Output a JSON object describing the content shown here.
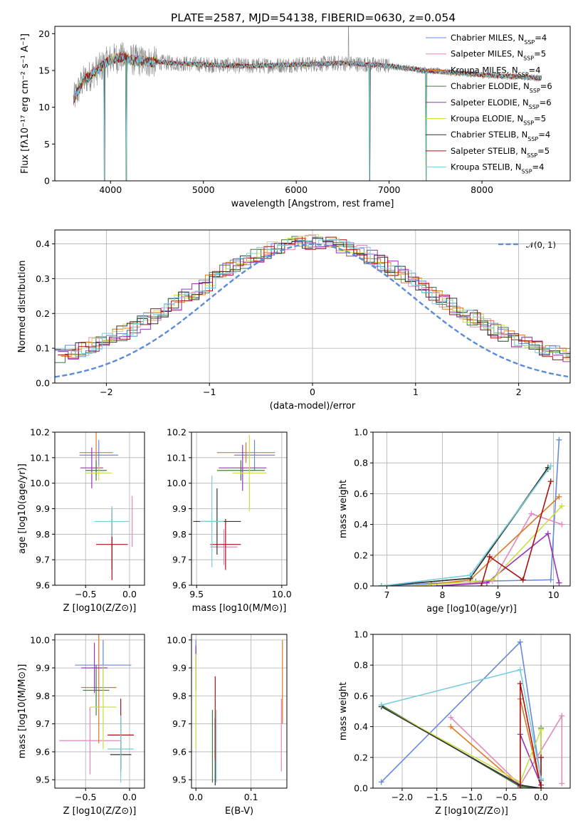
{
  "title": "PLATE=2587, MJD=54138, FIBERID=0630, z=0.054",
  "colors": {
    "series": [
      "#6688dd",
      "#e388bb",
      "#dd7722",
      "#447744",
      "#9933bb",
      "#ccdd44",
      "#333333",
      "#aa1111",
      "#77ccdd"
    ],
    "data_gray": "#888888",
    "normal_curve": "#5b8bdb",
    "grid": "#b0b0b0"
  },
  "legend_labels": {
    "spectrum": [
      {
        "pre": "Chabrier MILES, N",
        "sub": "SSP",
        "post": "=4"
      },
      {
        "pre": "Salpeter MILES, N",
        "sub": "SSP",
        "post": "=5"
      },
      {
        "pre": "Kroupa MILES, N",
        "sub": "SSP",
        "post": "=4"
      },
      {
        "pre": "Chabrier ELODIE, N",
        "sub": "SSP",
        "post": "=6"
      },
      {
        "pre": "Salpeter ELODIE, N",
        "sub": "SSP",
        "post": "=6"
      },
      {
        "pre": "Kroupa ELODIE, N",
        "sub": "SSP",
        "post": "=5"
      },
      {
        "pre": "Chabrier STELIB, N",
        "sub": "SSP",
        "post": "=4"
      },
      {
        "pre": "Salpeter STELIB, N",
        "sub": "SSP",
        "post": "=5"
      },
      {
        "pre": "Kroupa STELIB, N",
        "sub": "SSP",
        "post": "=4"
      }
    ],
    "normal": "𝒩(0, 1)"
  },
  "chart_data": [
    {
      "id": "spectrum",
      "type": "line",
      "title": "PLATE=2587, MJD=54138, FIBERID=0630, z=0.054",
      "xlabel": "wavelength [Angstrom, rest frame]",
      "ylabel": "Flux [fλ10⁻¹⁷ erg cm⁻² s⁻¹ A⁻¹]",
      "xlim": [
        3400,
        8950
      ],
      "ylim": [
        0,
        21
      ],
      "xticks": [
        4000,
        5000,
        6000,
        7000,
        8000
      ],
      "yticks": [
        0,
        5,
        10,
        15,
        20
      ],
      "grid": false,
      "legend": "top-right",
      "continuum": {
        "x": [
          3600,
          3700,
          3800,
          3900,
          4000,
          4100,
          4200,
          4400,
          4700,
          5000,
          5500,
          6000,
          6500,
          6800,
          7000,
          7200,
          7400,
          7600,
          7800,
          8000,
          8300,
          8600
        ],
        "y": [
          11.0,
          13.5,
          14.5,
          15.5,
          16.5,
          16.8,
          16.5,
          16.2,
          16.0,
          15.8,
          15.6,
          15.8,
          16.0,
          15.8,
          15.6,
          15.3,
          15.0,
          14.8,
          14.6,
          14.4,
          14.2,
          14.0
        ]
      },
      "dips": [
        3934,
        4170,
        6790,
        7400
      ]
    },
    {
      "id": "residuals",
      "type": "step",
      "xlabel": "(data-model)/error",
      "ylabel": "Normed distribution",
      "xlim": [
        -2.5,
        2.5
      ],
      "ylim": [
        0,
        0.44
      ],
      "xticks": [
        -2,
        -1,
        0,
        1,
        2
      ],
      "yticks": [
        0.0,
        0.1,
        0.2,
        0.3,
        0.4
      ],
      "grid": true,
      "legend": "top-right",
      "bin_width": 0.1,
      "curve": "normal(0,1)"
    },
    {
      "id": "age-vs-Z",
      "type": "errorbar",
      "xlabel": "Z [log10(Z/Z⊙)]",
      "ylabel": "age [log10(age/yr)]",
      "xlim": [
        -0.85,
        0.17
      ],
      "ylim": [
        9.6,
        10.2
      ],
      "xticks": [
        -0.5,
        0.0
      ],
      "yticks": [
        9.6,
        9.7,
        9.8,
        9.9,
        10.0,
        10.1,
        10.2
      ],
      "grid": true,
      "points": [
        {
          "x": -0.35,
          "xerr": 0.22,
          "y": 10.11,
          "yerr": 0.06
        },
        {
          "x": 0.03,
          "xerr": 0.0,
          "y": 9.85,
          "yerr": 0.1
        },
        {
          "x": -0.38,
          "xerr": 0.19,
          "y": 10.12,
          "yerr": 0.09
        },
        {
          "x": -0.38,
          "xerr": 0.12,
          "y": 10.05,
          "yerr": 0.04
        },
        {
          "x": -0.43,
          "xerr": 0.13,
          "y": 10.06,
          "yerr": 0.08
        },
        {
          "x": -0.35,
          "xerr": 0.15,
          "y": 10.04,
          "yerr": 0.03
        },
        {
          "x": -0.2,
          "xerr": 0.0,
          "y": 9.76,
          "yerr": 0.1
        },
        {
          "x": -0.2,
          "xerr": 0.18,
          "y": 9.76,
          "yerr": 0.14
        },
        {
          "x": -0.2,
          "xerr": 0.2,
          "y": 9.85,
          "yerr": 0.06
        }
      ]
    },
    {
      "id": "age-vs-mass",
      "type": "errorbar",
      "xlabel": "mass [log10(M/M⊙)]",
      "ylabel": "",
      "xlim": [
        9.47,
        10.03
      ],
      "ylim": [
        9.6,
        10.2
      ],
      "xticks": [
        9.5,
        10.0
      ],
      "yticks": [
        9.6,
        9.7,
        9.8,
        9.9,
        10.0,
        10.1,
        10.2
      ],
      "grid": true,
      "points": [
        {
          "x": 9.84,
          "xerr": 0.12,
          "y": 10.11,
          "yerr": 0.06
        },
        {
          "x": 9.66,
          "xerr": 0.08,
          "y": 9.75,
          "yerr": 0.07
        },
        {
          "x": 9.79,
          "xerr": 0.17,
          "y": 10.12,
          "yerr": 0.04
        },
        {
          "x": 9.76,
          "xerr": 0.14,
          "y": 10.05,
          "yerr": 0.04
        },
        {
          "x": 9.77,
          "xerr": 0.14,
          "y": 10.06,
          "yerr": 0.09
        },
        {
          "x": 9.81,
          "xerr": 0.1,
          "y": 10.04,
          "yerr": 0.15
        },
        {
          "x": 9.62,
          "xerr": 0.14,
          "y": 9.85,
          "yerr": 0.13
        },
        {
          "x": 9.67,
          "xerr": 0.09,
          "y": 9.76,
          "yerr": 0.1
        },
        {
          "x": 9.59,
          "xerr": 0.07,
          "y": 9.85,
          "yerr": 0.18
        }
      ]
    },
    {
      "id": "mass-weight-vs-age",
      "type": "line",
      "xlabel": "age [log10(age/yr)]",
      "ylabel": "mass weight",
      "xlim": [
        6.75,
        10.3
      ],
      "ylim": [
        0,
        1
      ],
      "xticks": [
        7,
        8,
        9,
        10
      ],
      "yticks": [
        0.0,
        0.2,
        0.4,
        0.6,
        0.8,
        1.0
      ],
      "grid": true,
      "series": [
        {
          "x": [
            6.9,
            8.6,
            9.95,
            10.1
          ],
          "y": [
            0.0,
            0.03,
            0.04,
            0.95
          ]
        },
        {
          "x": [
            7.9,
            8.9,
            9.6,
            10.15
          ],
          "y": [
            0.0,
            0.03,
            0.47,
            0.4
          ]
        },
        {
          "x": [
            7.8,
            8.5,
            10.1
          ],
          "y": [
            0.01,
            0.04,
            0.58
          ]
        },
        {
          "x": [
            6.9,
            8.5,
            9.9
          ],
          "y": [
            0.0,
            0.05,
            0.76
          ]
        },
        {
          "x": [
            7.9,
            8.8,
            9.9,
            10.1
          ],
          "y": [
            0.0,
            0.02,
            0.34,
            0.02
          ]
        },
        {
          "x": [
            7.5,
            8.9,
            10.15
          ],
          "y": [
            0.0,
            0.04,
            0.52
          ]
        },
        {
          "x": [
            6.9,
            8.5,
            9.9
          ],
          "y": [
            0.0,
            0.05,
            0.77
          ]
        },
        {
          "x": [
            8.7,
            8.85,
            9.45,
            9.95
          ],
          "y": [
            0.0,
            0.19,
            0.04,
            0.68
          ]
        },
        {
          "x": [
            6.9,
            8.5,
            9.95
          ],
          "y": [
            0.0,
            0.07,
            0.78
          ]
        }
      ]
    },
    {
      "id": "mass-vs-Z",
      "type": "errorbar",
      "xlabel": "Z [log10(Z/Z⊙)]",
      "ylabel": "mass [log10(M/M⊙)]",
      "xlim": [
        -0.85,
        0.17
      ],
      "ylim": [
        9.47,
        10.02
      ],
      "xticks": [
        -0.5,
        0.0
      ],
      "yticks": [
        9.5,
        9.6,
        9.7,
        9.8,
        9.9,
        10.0
      ],
      "grid": true,
      "points": [
        {
          "x": -0.3,
          "xerr": 0.32,
          "y": 9.91,
          "yerr": 0.09
        },
        {
          "x": -0.45,
          "xerr": 0.35,
          "y": 9.64,
          "yerr": 0.12
        },
        {
          "x": -0.35,
          "xerr": 0.2,
          "y": 9.83,
          "yerr": 0.2
        },
        {
          "x": -0.38,
          "xerr": 0.15,
          "y": 9.82,
          "yerr": 0.09
        },
        {
          "x": -0.4,
          "xerr": 0.15,
          "y": 9.9,
          "yerr": 0.09
        },
        {
          "x": -0.3,
          "xerr": 0.15,
          "y": 9.76,
          "yerr": 0.15
        },
        {
          "x": -0.1,
          "xerr": 0.12,
          "y": 9.59,
          "yerr": 0.05
        },
        {
          "x": -0.1,
          "xerr": 0.15,
          "y": 9.66,
          "yerr": 0.13
        },
        {
          "x": -0.1,
          "xerr": 0.15,
          "y": 9.61,
          "yerr": 0.12
        }
      ]
    },
    {
      "id": "mass-vs-ebv",
      "type": "errorbar",
      "xlabel": "E(B-V)",
      "ylabel": "",
      "xlim": [
        -0.008,
        0.165
      ],
      "ylim": [
        9.47,
        10.02
      ],
      "xticks": [
        0.0,
        0.1
      ],
      "yticks": [
        9.5,
        9.6,
        9.7,
        9.8,
        9.9,
        10.0
      ],
      "grid": true,
      "points": [
        {
          "x": 0.0,
          "xerr": 0.0,
          "y": 9.95,
          "yerr": 0.05
        },
        {
          "x": 0.155,
          "xerr": 0.0,
          "y": 9.66,
          "yerr": 0.13
        },
        {
          "x": 0.157,
          "xerr": 0.0,
          "y": 9.85,
          "yerr": 0.15
        },
        {
          "x": 0.03,
          "xerr": 0.0,
          "y": 9.62,
          "yerr": 0.13
        },
        {
          "x": 0.0,
          "xerr": 0.0,
          "y": 9.9,
          "yerr": 0.08
        },
        {
          "x": 0.0,
          "xerr": 0.0,
          "y": 9.78,
          "yerr": 0.17
        },
        {
          "x": 0.035,
          "xerr": 0.0,
          "y": 9.6,
          "yerr": 0.12
        },
        {
          "x": 0.035,
          "xerr": 0.0,
          "y": 9.72,
          "yerr": 0.15
        },
        {
          "x": 0.037,
          "xerr": 0.0,
          "y": 9.62,
          "yerr": 0.13
        }
      ]
    },
    {
      "id": "mass-weight-vs-Z",
      "type": "line",
      "xlabel": "Z [log10(Z/Z⊙)]",
      "ylabel": "mass weight",
      "xlim": [
        -2.42,
        0.42
      ],
      "ylim": [
        0,
        1
      ],
      "xticks": [
        -2.0,
        -1.5,
        -1.0,
        -0.5,
        0.0
      ],
      "yticks": [
        0.0,
        0.2,
        0.4,
        0.6,
        0.8,
        1.0
      ],
      "grid": true,
      "series": [
        {
          "x": [
            -2.3,
            -0.3,
            0.0
          ],
          "y": [
            0.04,
            0.95,
            0.05
          ]
        },
        {
          "x": [
            -1.3,
            -0.3,
            0.3,
            0.3
          ],
          "y": [
            0.46,
            0.02,
            0.47,
            0.03
          ]
        },
        {
          "x": [
            -1.3,
            -0.3,
            -0.3,
            0.0
          ],
          "y": [
            0.4,
            0.01,
            0.58,
            0.0
          ]
        },
        {
          "x": [
            -2.3,
            -0.3,
            0.0,
            0.0
          ],
          "y": [
            0.54,
            0.01,
            0.0,
            0.39
          ]
        },
        {
          "x": [
            -0.3,
            -0.3,
            0.0
          ],
          "y": [
            0.0,
            0.35,
            0.02
          ]
        },
        {
          "x": [
            -2.3,
            -0.3,
            0.0,
            0.0
          ],
          "y": [
            0.53,
            0.04,
            0.38,
            0.0
          ]
        },
        {
          "x": [
            -2.3,
            -0.3,
            0.0
          ],
          "y": [
            0.53,
            0.02,
            0.0
          ]
        },
        {
          "x": [
            -0.3,
            -0.3,
            0.0,
            0.0
          ],
          "y": [
            0.0,
            0.68,
            0.0,
            0.2
          ]
        },
        {
          "x": [
            -2.3,
            -0.3,
            0.0
          ],
          "y": [
            0.54,
            0.77,
            0.06
          ]
        }
      ]
    }
  ]
}
